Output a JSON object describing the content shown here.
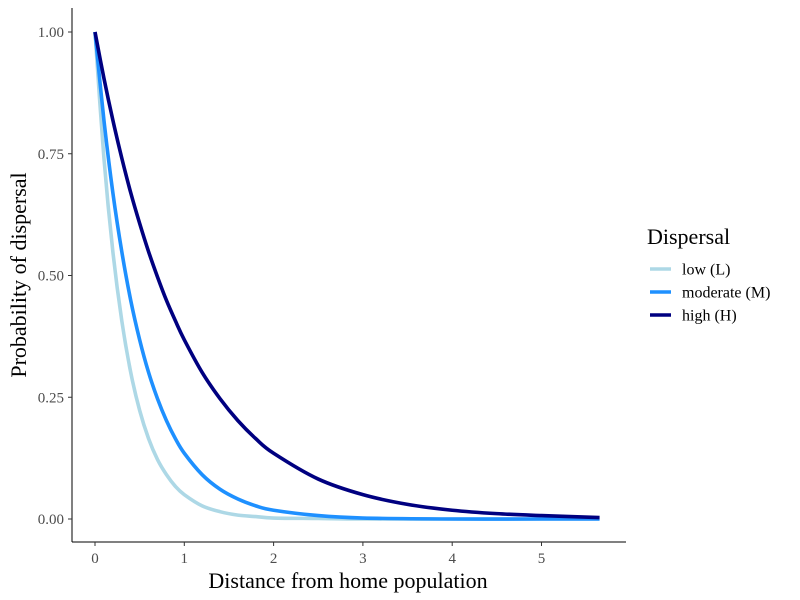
{
  "chart_data": {
    "type": "line",
    "xlabel": "Distance from home population",
    "ylabel": "Probability of dispersal",
    "xlim": [
      0,
      5.65
    ],
    "ylim": [
      0,
      1
    ],
    "x_ticks": [
      0,
      1,
      2,
      3,
      4,
      5
    ],
    "x_tick_labels": [
      "0",
      "1",
      "2",
      "3",
      "4",
      "5"
    ],
    "y_ticks": [
      0,
      0.25,
      0.5,
      0.75,
      1
    ],
    "y_tick_labels": [
      "0.00",
      "0.25",
      "0.50",
      "0.75",
      "1.00"
    ],
    "grid": false,
    "legend": {
      "title": "Dispersal",
      "position": "right"
    },
    "series": [
      {
        "name": "low (L)",
        "color": "#add8e6",
        "x": [
          0,
          0.1,
          0.2,
          0.3,
          0.4,
          0.5,
          0.6,
          0.7,
          0.8,
          0.9,
          1.0,
          1.2,
          1.4,
          1.6,
          1.8,
          2.0,
          2.5,
          3.0,
          4.0,
          5.0,
          5.65
        ],
        "y": [
          1.0,
          0.741,
          0.549,
          0.407,
          0.301,
          0.223,
          0.165,
          0.122,
          0.091,
          0.067,
          0.05,
          0.027,
          0.015,
          0.008,
          0.005,
          0.002,
          0.001,
          0.0,
          0.0,
          0.0,
          0.0
        ]
      },
      {
        "name": "moderate (M)",
        "color": "#1e90ff",
        "x": [
          0,
          0.1,
          0.2,
          0.3,
          0.4,
          0.5,
          0.6,
          0.7,
          0.8,
          0.9,
          1.0,
          1.2,
          1.4,
          1.6,
          1.8,
          2.0,
          2.5,
          3.0,
          4.0,
          5.0,
          5.65
        ],
        "y": [
          1.0,
          0.819,
          0.67,
          0.549,
          0.449,
          0.368,
          0.301,
          0.247,
          0.202,
          0.165,
          0.135,
          0.091,
          0.061,
          0.041,
          0.027,
          0.018,
          0.007,
          0.002,
          0.0,
          0.0,
          0.0
        ]
      },
      {
        "name": "high (H)",
        "color": "#000080",
        "x": [
          0,
          0.1,
          0.2,
          0.3,
          0.4,
          0.5,
          0.6,
          0.7,
          0.8,
          0.9,
          1.0,
          1.2,
          1.4,
          1.6,
          1.8,
          2.0,
          2.5,
          3.0,
          3.5,
          4.0,
          4.5,
          5.0,
          5.65
        ],
        "y": [
          1.0,
          0.905,
          0.819,
          0.741,
          0.67,
          0.607,
          0.549,
          0.497,
          0.449,
          0.407,
          0.368,
          0.301,
          0.247,
          0.202,
          0.165,
          0.135,
          0.082,
          0.05,
          0.03,
          0.018,
          0.011,
          0.007,
          0.003
        ]
      }
    ]
  }
}
